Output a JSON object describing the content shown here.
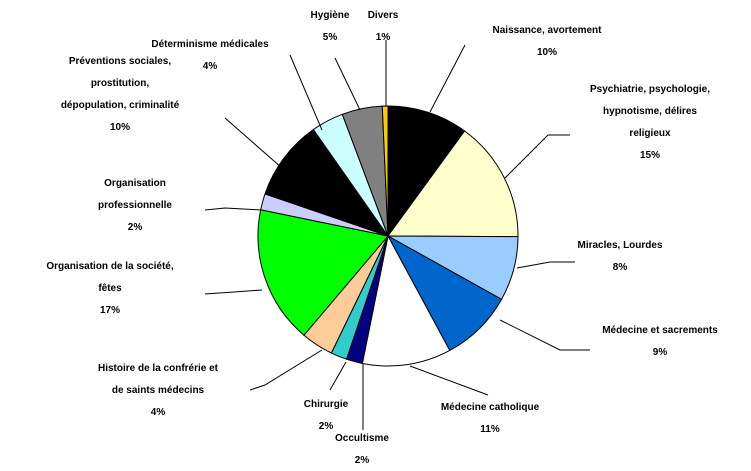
{
  "chart_data": {
    "type": "pie",
    "title": "",
    "start_angle_deg": 90,
    "direction": "clockwise",
    "legend": "none",
    "slices": [
      {
        "label": [
          "Naissance, avortement"
        ],
        "pct_label": "10%",
        "value": 10,
        "color": "#000000"
      },
      {
        "label": [
          "Psychiatrie, psychologie,",
          "hypnotisme, délires",
          "religieux"
        ],
        "pct_label": "15%",
        "value": 15,
        "color": "#FFFFCC"
      },
      {
        "label": [
          "Miracles, Lourdes"
        ],
        "pct_label": "8%",
        "value": 8,
        "color": "#99CCFF"
      },
      {
        "label": [
          "Médecine et sacrements"
        ],
        "pct_label": "9%",
        "value": 9,
        "color": "#0066CC"
      },
      {
        "label": [
          "Médecine catholique"
        ],
        "pct_label": "11%",
        "value": 11,
        "color": "#FFFFFF"
      },
      {
        "label": [
          "Occultisme"
        ],
        "pct_label": "2%",
        "value": 2,
        "color": "#000080"
      },
      {
        "label": [
          "Chirurgie"
        ],
        "pct_label": "2%",
        "value": 2,
        "color": "#33CCCC"
      },
      {
        "label": [
          "Histoire de la confrérie et",
          "de saints médecins"
        ],
        "pct_label": "4%",
        "value": 4,
        "color": "#FFCC99"
      },
      {
        "label": [
          "Organisation de la société,",
          "fêtes"
        ],
        "pct_label": "17%",
        "value": 17,
        "color": "#00FF00"
      },
      {
        "label": [
          "Organisation",
          "professionnelle"
        ],
        "pct_label": "2%",
        "value": 2,
        "color": "#CCCCFF"
      },
      {
        "label": [
          "Préventions sociales,",
          "prostitution,",
          "dépopulation, criminalité"
        ],
        "pct_label": "10%",
        "value": 10,
        "color": "#000000"
      },
      {
        "label": [
          "Déterminisme médicales"
        ],
        "pct_label": "4%",
        "value": 4,
        "color": "#CCFFFF"
      },
      {
        "label": [
          "Hygiène"
        ],
        "pct_label": "5%",
        "value": 5,
        "color": "#808080"
      },
      {
        "label": [
          "Divers"
        ],
        "pct_label": "1%",
        "value": 0.7,
        "color": "#FFCC00"
      }
    ]
  }
}
